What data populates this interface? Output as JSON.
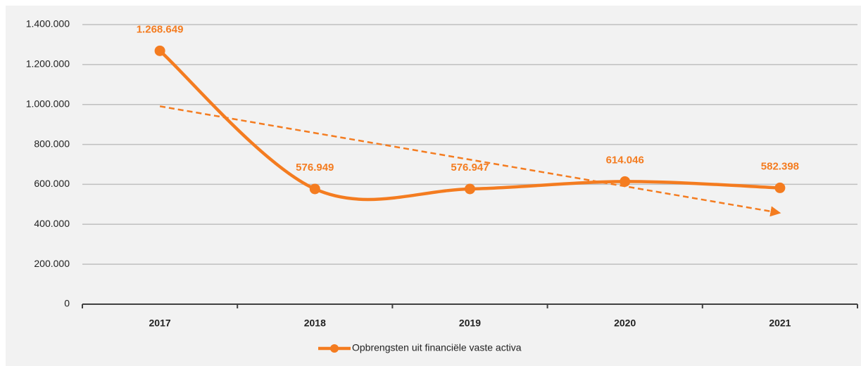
{
  "chart_data": {
    "type": "line",
    "categories": [
      "2017",
      "2018",
      "2019",
      "2020",
      "2021"
    ],
    "series": [
      {
        "name": "Opbrengsten uit financiële vaste activa",
        "color": "#f47c20",
        "values": [
          1268649,
          576949,
          576947,
          614046,
          582398
        ],
        "value_labels": [
          "1.268.649",
          "576.949",
          "576.947",
          "614.046",
          "582.398"
        ]
      }
    ],
    "ylim": [
      0,
      1400000
    ],
    "yticks": [
      0,
      {
        "value": 200000,
        "label": "200.000"
      },
      {
        "value": 400000,
        "label": "400.000"
      },
      {
        "value": 600000,
        "label": "600.000"
      },
      {
        "value": 800000,
        "label": "800.000"
      },
      {
        "value": 1000000,
        "label": "1.000.000"
      },
      {
        "value": 1200000,
        "label": "1.200.000"
      },
      {
        "value": 1400000,
        "label": "1.400.000"
      }
    ],
    "grid": true,
    "smooth": true,
    "trendline": true,
    "legend": "bottom"
  }
}
